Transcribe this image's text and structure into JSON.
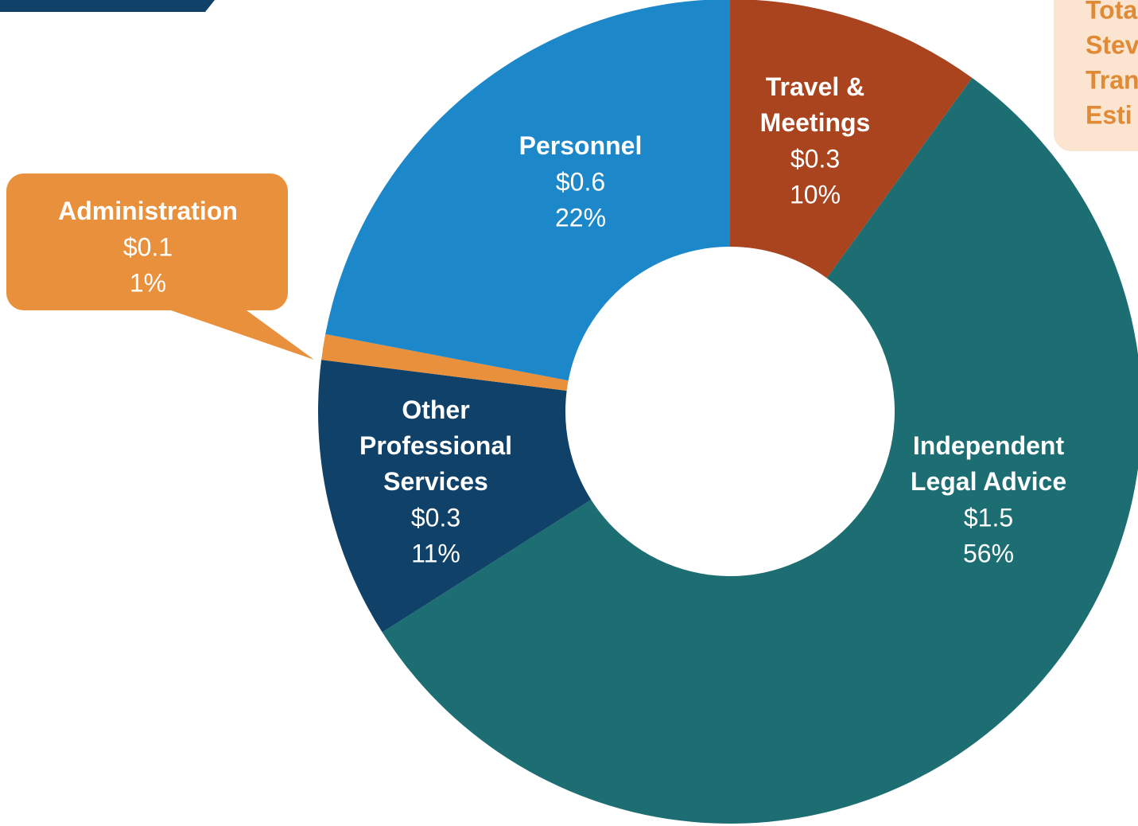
{
  "chart_data": {
    "type": "donut",
    "categories": [
      "Travel & Meetings",
      "Independent Legal Advice",
      "Other Professional Services",
      "Administration",
      "Personnel"
    ],
    "values": [
      10,
      56,
      11,
      1,
      22
    ],
    "value_labels": [
      "10%",
      "56%",
      "11%",
      "1%",
      "22%"
    ],
    "amounts": [
      0.3,
      1.5,
      0.3,
      0.1,
      0.6
    ],
    "amount_labels": [
      "$0.3",
      "$1.5",
      "$0.3",
      "$0.1",
      "$0.6"
    ],
    "colors": [
      "#a9441e",
      "#1c6e72",
      "#0f4169",
      "#e8903b",
      "#1c87c9"
    ],
    "annotation": [
      "Tota",
      "Stev",
      "Tran",
      "Esti"
    ]
  }
}
